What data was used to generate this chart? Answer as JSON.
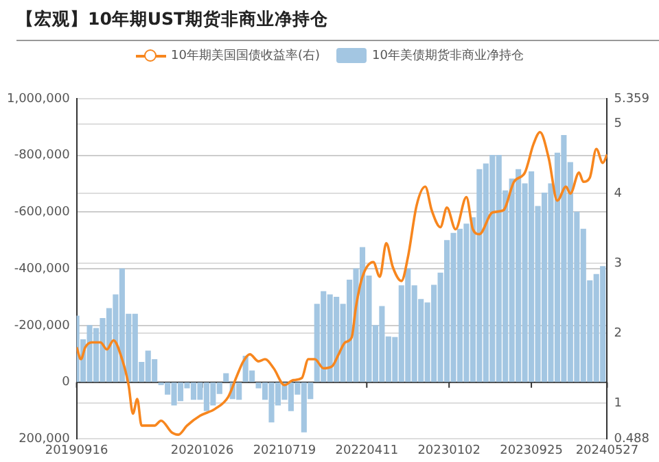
{
  "chart_data": {
    "type": "bar",
    "title": "【宏观】10年期UST期货非商业净持仓",
    "legend": "top",
    "grid": "y",
    "xlim": [
      "2019-09-16",
      "2024-05-27"
    ],
    "xticks": [
      {
        "value": "2019-09-16",
        "label": "20190916"
      },
      {
        "value": "2020-10-26",
        "label": "20201026"
      },
      {
        "value": "2021-07-19",
        "label": "20210719"
      },
      {
        "value": "2022-04-11",
        "label": "20220411"
      },
      {
        "value": "2023-01-02",
        "label": "20230102"
      },
      {
        "value": "2023-09-25",
        "label": "20230925"
      },
      {
        "value": "2024-05-27",
        "label": "20240527"
      }
    ],
    "ylim": [
      200000,
      -1000000
    ],
    "yticks": [
      {
        "value": -1000000,
        "label": "1,000,000"
      },
      {
        "value": -800000,
        "label": "-800,000"
      },
      {
        "value": -600000,
        "label": "-600,000"
      },
      {
        "value": -400000,
        "label": "-400,000"
      },
      {
        "value": -200000,
        "label": "-200,000"
      },
      0,
      {
        "value": 200000,
        "label": "200,000"
      }
    ],
    "y2lim": [
      0.488,
      5.359
    ],
    "y2ticks": [
      0.488,
      1,
      2,
      3,
      4,
      5,
      5.359
    ],
    "series": [
      {
        "name": "10年期美国国债收益率(右)",
        "type": "line",
        "axis": "y2",
        "color": "#f7861e",
        "marker": "none",
        "line_style": "solid",
        "x": [
          "2019-09-16",
          "2019-09-30",
          "2019-10-14",
          "2019-11-04",
          "2019-12-02",
          "2019-12-23",
          "2020-01-13",
          "2020-02-10",
          "2020-03-02",
          "2020-03-16",
          "2020-03-30",
          "2020-04-13",
          "2020-05-04",
          "2020-05-25",
          "2020-06-15",
          "2020-07-20",
          "2020-08-10",
          "2020-09-07",
          "2020-10-19",
          "2020-12-07",
          "2021-01-18",
          "2021-02-15",
          "2021-03-08",
          "2021-03-29",
          "2021-04-26",
          "2021-05-17",
          "2021-06-14",
          "2021-07-19",
          "2021-08-16",
          "2021-09-13",
          "2021-10-04",
          "2021-10-25",
          "2021-11-22",
          "2021-12-20",
          "2022-01-10",
          "2022-01-31",
          "2022-02-21",
          "2022-03-07",
          "2022-03-28",
          "2022-05-02",
          "2022-05-23",
          "2022-06-13",
          "2022-07-04",
          "2022-08-01",
          "2022-08-22",
          "2022-09-19",
          "2022-10-17",
          "2022-11-07",
          "2022-12-05",
          "2022-12-26",
          "2023-01-23",
          "2023-02-27",
          "2023-03-20",
          "2023-04-10",
          "2023-05-22",
          "2023-06-26",
          "2023-07-31",
          "2023-09-04",
          "2023-10-02",
          "2023-10-23",
          "2023-11-20",
          "2023-12-18",
          "2024-01-15",
          "2024-01-29",
          "2024-02-26",
          "2024-03-11",
          "2024-04-01",
          "2024-04-22",
          "2024-05-13",
          "2024-05-27"
        ],
        "values": [
          1.8,
          1.63,
          1.8,
          1.87,
          1.87,
          1.77,
          1.9,
          1.63,
          1.26,
          0.85,
          1.06,
          0.68,
          0.68,
          0.68,
          0.75,
          0.58,
          0.55,
          0.68,
          0.82,
          0.92,
          1.09,
          1.39,
          1.6,
          1.7,
          1.6,
          1.63,
          1.5,
          1.26,
          1.33,
          1.36,
          1.63,
          1.63,
          1.5,
          1.53,
          1.7,
          1.87,
          1.94,
          2.38,
          2.81,
          3.02,
          2.81,
          3.29,
          2.95,
          2.75,
          3.09,
          3.83,
          4.1,
          3.76,
          3.52,
          3.8,
          3.49,
          3.95,
          3.49,
          3.42,
          3.73,
          3.76,
          4.17,
          4.3,
          4.71,
          4.88,
          4.51,
          3.9,
          4.1,
          4.0,
          4.3,
          4.17,
          4.23,
          4.64,
          4.44,
          4.56
        ]
      },
      {
        "name": "10年美债期货非商业净持仓",
        "color": "#a3c6e2",
        "x": [
          "2019-09-16",
          "2019-10-07",
          "2019-10-28",
          "2019-11-18",
          "2019-12-09",
          "2019-12-30",
          "2020-01-20",
          "2020-02-10",
          "2020-03-02",
          "2020-03-23",
          "2020-04-13",
          "2020-05-04",
          "2020-05-25",
          "2020-06-15",
          "2020-07-06",
          "2020-07-27",
          "2020-08-17",
          "2020-09-07",
          "2020-09-28",
          "2020-10-19",
          "2020-11-09",
          "2020-11-30",
          "2020-12-21",
          "2021-01-11",
          "2021-02-01",
          "2021-02-22",
          "2021-03-15",
          "2021-04-05",
          "2021-04-26",
          "2021-05-17",
          "2021-06-07",
          "2021-06-28",
          "2021-07-19",
          "2021-08-09",
          "2021-08-30",
          "2021-09-20",
          "2021-10-11",
          "2021-11-01",
          "2021-11-22",
          "2021-12-13",
          "2022-01-03",
          "2022-01-24",
          "2022-02-14",
          "2022-03-07",
          "2022-03-28",
          "2022-04-18",
          "2022-05-09",
          "2022-05-30",
          "2022-06-20",
          "2022-07-11",
          "2022-08-01",
          "2022-08-22",
          "2022-09-12",
          "2022-10-03",
          "2022-10-24",
          "2022-11-14",
          "2022-12-05",
          "2022-12-26",
          "2023-01-16",
          "2023-02-06",
          "2023-02-27",
          "2023-03-20",
          "2023-04-10",
          "2023-05-01",
          "2023-05-22",
          "2023-06-12",
          "2023-07-03",
          "2023-07-24",
          "2023-08-14",
          "2023-09-04",
          "2023-09-25",
          "2023-10-16",
          "2023-11-06",
          "2023-11-27",
          "2023-12-18",
          "2024-01-08",
          "2024-01-29",
          "2024-02-19",
          "2024-03-11",
          "2024-04-01",
          "2024-04-22",
          "2024-05-13"
        ],
        "values": [
          -233000,
          -150000,
          -200000,
          -190000,
          -225000,
          -260000,
          -308000,
          -400000,
          -240000,
          -240000,
          -70000,
          -110000,
          -80000,
          8000,
          42000,
          80000,
          65000,
          20000,
          60000,
          60000,
          100000,
          80000,
          40000,
          -30000,
          58000,
          60000,
          -92000,
          -40000,
          20000,
          60000,
          140000,
          80000,
          60000,
          100000,
          42000,
          175000,
          58000,
          -275000,
          -320000,
          -308000,
          -300000,
          -275000,
          -360000,
          -400000,
          -475000,
          -375000,
          -200000,
          -267000,
          -160000,
          -158000,
          -340000,
          -400000,
          -340000,
          -292000,
          -280000,
          -342000,
          -385000,
          -500000,
          -525000,
          -540000,
          -558000,
          -580000,
          -750000,
          -770000,
          -800000,
          -800000,
          -675000,
          -717000,
          -750000,
          -700000,
          -742000,
          -620000,
          -667000,
          -700000,
          -808000,
          -870000,
          -775000,
          -600000,
          -540000,
          -358000,
          -380000,
          -408000
        ]
      }
    ]
  }
}
